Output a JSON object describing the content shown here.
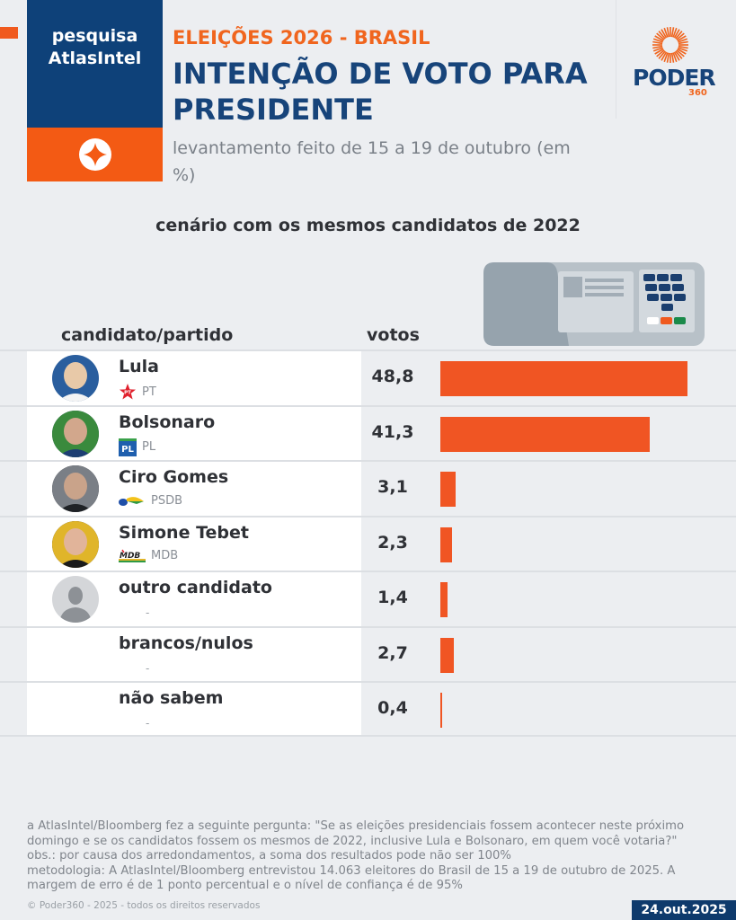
{
  "brand": {
    "line1": "pesquisa",
    "line2": "AtlasIntel"
  },
  "header": {
    "kicker": "ELEIÇÕES 2026 - BRASIL",
    "title": "INTENÇÃO DE VOTO PARA PRESIDENTE",
    "subtitle": "levantamento feito de 15 a 19 de outubro (em %)",
    "logo_word": "PODER",
    "logo_number": "360"
  },
  "scenario": "cenário com os mesmos candidatos de 2022",
  "table_headers": {
    "candidate": "candidato/partido",
    "votes": "votos"
  },
  "colors": {
    "bar": "#f05523",
    "navy": "#0e4179",
    "orange": "#f35a14"
  },
  "chart_data": {
    "type": "bar",
    "title": "INTENÇÃO DE VOTO PARA PRESIDENTE",
    "subtitle": "cenário com os mesmos candidatos de 2022",
    "xlabel": "votos",
    "ylabel": "candidato/partido",
    "unit": "%",
    "orientation": "horizontal",
    "xlim": [
      0,
      50
    ],
    "categories": [
      "Lula",
      "Bolsonaro",
      "Ciro Gomes",
      "Simone Tebet",
      "outro candidato",
      "brancos/nulos",
      "não sabem"
    ],
    "values": [
      48.8,
      41.3,
      3.1,
      2.3,
      1.4,
      2.7,
      0.4
    ],
    "rows": [
      {
        "name": "Lula",
        "party": "PT",
        "value": 48.8,
        "label": "48,8",
        "avatar": "photo"
      },
      {
        "name": "Bolsonaro",
        "party": "PL",
        "value": 41.3,
        "label": "41,3",
        "avatar": "photo"
      },
      {
        "name": "Ciro Gomes",
        "party": "PSDB",
        "value": 3.1,
        "label": "3,1",
        "avatar": "photo"
      },
      {
        "name": "Simone Tebet",
        "party": "MDB",
        "value": 2.3,
        "label": "2,3",
        "avatar": "photo"
      },
      {
        "name": "outro candidato",
        "party": "-",
        "value": 1.4,
        "label": "1,4",
        "avatar": "placeholder"
      },
      {
        "name": "brancos/nulos",
        "party": "-",
        "value": 2.7,
        "label": "2,7",
        "avatar": "none"
      },
      {
        "name": "não sabem",
        "party": "-",
        "value": 0.4,
        "label": "0,4",
        "avatar": "none"
      }
    ]
  },
  "footer": {
    "question": "a AtlasIntel/Bloomberg fez a seguinte pergunta: \"Se as eleições presidenciais fossem acontecer neste próximo domingo e se os candidatos fossem os mesmos de 2022, inclusive Lula e Bolsonaro, em quem você votaria?\"",
    "obs": "obs.: por causa dos arredondamentos, a soma dos resultados pode não ser 100%",
    "methodology": "metodologia: A AtlasIntel/Bloomberg entrevistou 14.063 eleitores do Brasil de 15 a 19 de outubro de 2025. A margem de erro é de 1 ponto percentual e o nível de confiança é de 95%",
    "copyright": "© Poder360 - 2025 - todos os direitos reservados",
    "date": "24.out.2025"
  }
}
